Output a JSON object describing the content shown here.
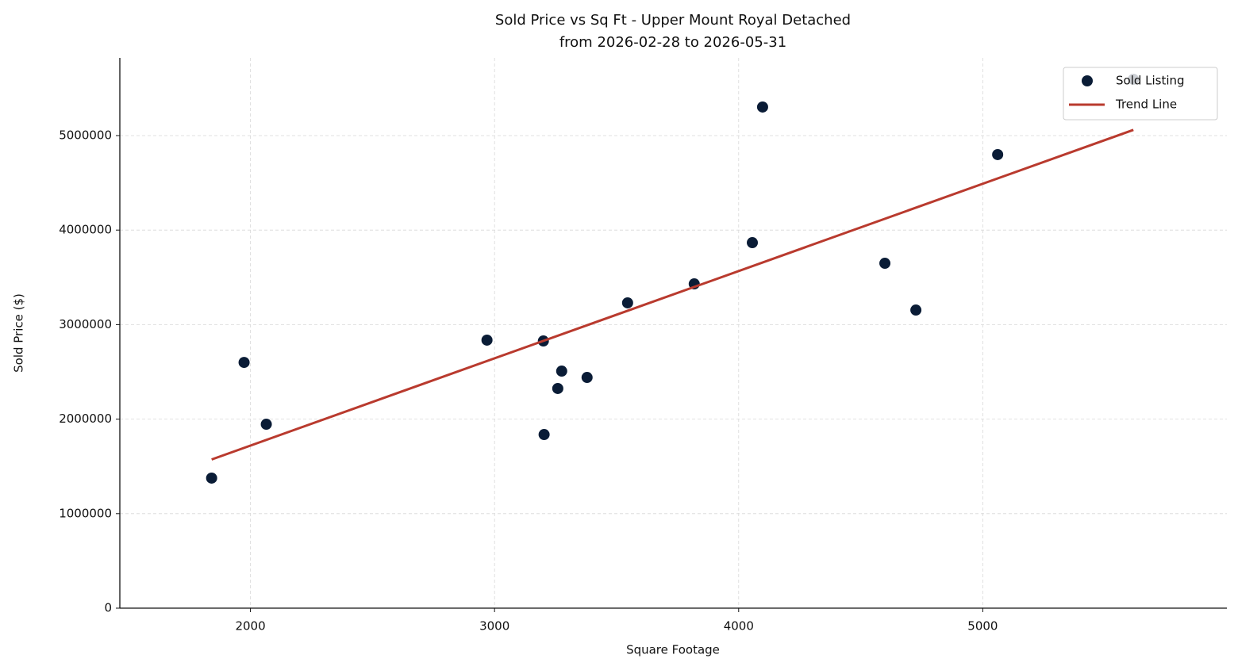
{
  "chart_data": {
    "type": "scatter",
    "title": "Sold Price vs Sq Ft - Upper Mount Royal Detached",
    "subtitle": "from 2026-02-28 to 2026-05-31",
    "x_label": "Square Footage",
    "y_label": "Sold Price ($)",
    "xlim": [
      1465,
      6000
    ],
    "ylim": [
      0,
      5822000
    ],
    "xticks": [
      2000,
      3000,
      4000,
      5000
    ],
    "yticks": [
      0,
      1000000,
      2000000,
      3000000,
      4000000,
      5000000
    ],
    "grid": true,
    "legend": "upper right",
    "series": [
      {
        "name": "Sold Listing",
        "type": "scatter",
        "color": "#0a1c36",
        "x": [
          1841,
          1974,
          2065,
          2969,
          3200,
          3203,
          3259,
          3275,
          3379,
          3545,
          3818,
          4056,
          4098,
          4599,
          4726,
          5061,
          5617
        ],
        "values": [
          1376000,
          2600000,
          1946000,
          2836000,
          2827000,
          1837000,
          2324000,
          2508000,
          2441000,
          3230000,
          3431000,
          3867000,
          5302000,
          3649000,
          3154000,
          4799000,
          5596000
        ]
      },
      {
        "name": "Trend Line",
        "type": "line",
        "color": "#b93a2e",
        "x": [
          1841,
          5617
        ],
        "values": [
          1573000,
          5060000
        ]
      }
    ]
  }
}
